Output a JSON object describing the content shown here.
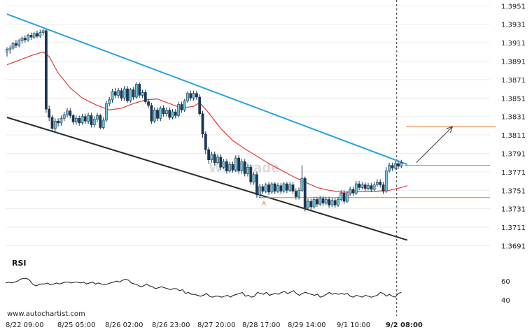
{
  "chart_data": {
    "type": "candlestick",
    "x_ticks": [
      "8/22 09:00",
      "8/25 05:00",
      "8/26 02:00",
      "8/26 23:00",
      "8/27 20:00",
      "8/28 17:00",
      "8/29 14:00",
      "9/1 10:00",
      "9/2 08:00"
    ],
    "y_ticks": [
      "1.3951",
      "1.3931",
      "1.3911",
      "1.3891",
      "1.3871",
      "1.3851",
      "1.3831",
      "1.3811",
      "1.3791",
      "1.3771",
      "1.3751",
      "1.3731",
      "1.3711",
      "1.3691"
    ],
    "ylim": [
      1.3683,
      1.3955
    ],
    "breakout_time": "9/2 08:00",
    "candles": [
      [
        1.3901,
        1.3904,
        1.3896,
        1.3906
      ],
      [
        1.3904,
        1.3905,
        1.3899,
        1.3908
      ],
      [
        1.3905,
        1.391,
        1.3903,
        1.3912
      ],
      [
        1.391,
        1.3908,
        1.3905,
        1.3914
      ],
      [
        1.3908,
        1.3913,
        1.3906,
        1.3915
      ],
      [
        1.3913,
        1.3916,
        1.391,
        1.3918
      ],
      [
        1.3916,
        1.3914,
        1.3911,
        1.3919
      ],
      [
        1.3914,
        1.3919,
        1.3912,
        1.3921
      ],
      [
        1.3919,
        1.3917,
        1.3914,
        1.3922
      ],
      [
        1.3917,
        1.3921,
        1.3915,
        1.3923
      ],
      [
        1.3921,
        1.3918,
        1.3916,
        1.3924
      ],
      [
        1.3918,
        1.3922,
        1.3916,
        1.3925
      ],
      [
        1.3922,
        1.3924,
        1.3919,
        1.3926
      ],
      [
        1.3924,
        1.3839,
        1.3835,
        1.3926
      ],
      [
        1.3839,
        1.383,
        1.3826,
        1.3843
      ],
      [
        1.383,
        1.3818,
        1.3815,
        1.3833
      ],
      [
        1.3818,
        1.3826,
        1.3815,
        1.3829
      ],
      [
        1.3826,
        1.3824,
        1.382,
        1.3829
      ],
      [
        1.3824,
        1.3829,
        1.3821,
        1.3832
      ],
      [
        1.3829,
        1.3833,
        1.3826,
        1.3836
      ],
      [
        1.3833,
        1.3837,
        1.383,
        1.384
      ],
      [
        1.3837,
        1.3832,
        1.3829,
        1.384
      ],
      [
        1.3832,
        1.3825,
        1.3822,
        1.3834
      ],
      [
        1.3825,
        1.3829,
        1.3822,
        1.3832
      ],
      [
        1.3829,
        1.3824,
        1.3821,
        1.3832
      ],
      [
        1.3824,
        1.3831,
        1.3822,
        1.3834
      ],
      [
        1.3831,
        1.3826,
        1.3823,
        1.3834
      ],
      [
        1.3826,
        1.3832,
        1.3823,
        1.3835
      ],
      [
        1.3832,
        1.3822,
        1.3819,
        1.3835
      ],
      [
        1.3822,
        1.3828,
        1.3819,
        1.3831
      ],
      [
        1.3828,
        1.3832,
        1.3825,
        1.3835
      ],
      [
        1.3832,
        1.3819,
        1.3817,
        1.3834
      ],
      [
        1.3819,
        1.3827,
        1.3817,
        1.383
      ],
      [
        1.3827,
        1.3845,
        1.3825,
        1.3848
      ],
      [
        1.3845,
        1.3849,
        1.3842,
        1.3852
      ],
      [
        1.3849,
        1.3858,
        1.3846,
        1.3861
      ],
      [
        1.3858,
        1.3854,
        1.3851,
        1.3862
      ],
      [
        1.3854,
        1.3859,
        1.3851,
        1.3862
      ],
      [
        1.3859,
        1.3851,
        1.3848,
        1.3862
      ],
      [
        1.3851,
        1.3861,
        1.3848,
        1.3864
      ],
      [
        1.3861,
        1.3848,
        1.3846,
        1.3864
      ],
      [
        1.3848,
        1.386,
        1.3846,
        1.3862
      ],
      [
        1.386,
        1.3852,
        1.3849,
        1.3863
      ],
      [
        1.3852,
        1.3866,
        1.385,
        1.3868
      ],
      [
        1.3866,
        1.3854,
        1.3851,
        1.3868
      ],
      [
        1.3854,
        1.3857,
        1.3851,
        1.386
      ],
      [
        1.3857,
        1.3847,
        1.3845,
        1.386
      ],
      [
        1.3847,
        1.3843,
        1.384,
        1.385
      ],
      [
        1.3843,
        1.3826,
        1.3823,
        1.3846
      ],
      [
        1.3826,
        1.3838,
        1.3824,
        1.3841
      ],
      [
        1.3838,
        1.3829,
        1.3826,
        1.3841
      ],
      [
        1.3829,
        1.384,
        1.3826,
        1.3842
      ],
      [
        1.384,
        1.3834,
        1.3831,
        1.3843
      ],
      [
        1.3834,
        1.3838,
        1.3831,
        1.3841
      ],
      [
        1.3838,
        1.383,
        1.3827,
        1.3841
      ],
      [
        1.383,
        1.3836,
        1.3828,
        1.3839
      ],
      [
        1.3836,
        1.3832,
        1.3829,
        1.3839
      ],
      [
        1.3832,
        1.3844,
        1.383,
        1.3847
      ],
      [
        1.3844,
        1.3838,
        1.3835,
        1.3847
      ],
      [
        1.3838,
        1.3848,
        1.3836,
        1.385
      ],
      [
        1.3848,
        1.3856,
        1.3846,
        1.3858
      ],
      [
        1.3856,
        1.3851,
        1.3848,
        1.3859
      ],
      [
        1.3851,
        1.3856,
        1.3848,
        1.3859
      ],
      [
        1.3856,
        1.3852,
        1.3849,
        1.3859
      ],
      [
        1.3852,
        1.3834,
        1.3832,
        1.3855
      ],
      [
        1.3834,
        1.3812,
        1.3808,
        1.3837
      ],
      [
        1.3812,
        1.3795,
        1.379,
        1.3815
      ],
      [
        1.3795,
        1.3784,
        1.378,
        1.3798
      ],
      [
        1.3784,
        1.379,
        1.3781,
        1.3793
      ],
      [
        1.379,
        1.3781,
        1.3778,
        1.3793
      ],
      [
        1.3781,
        1.3787,
        1.3779,
        1.379
      ],
      [
        1.3787,
        1.3776,
        1.3773,
        1.379
      ],
      [
        1.3776,
        1.3782,
        1.3774,
        1.3785
      ],
      [
        1.3782,
        1.3772,
        1.3769,
        1.3785
      ],
      [
        1.3772,
        1.3779,
        1.377,
        1.3782
      ],
      [
        1.3779,
        1.3773,
        1.377,
        1.3782
      ],
      [
        1.3773,
        1.3786,
        1.3771,
        1.3789
      ],
      [
        1.3786,
        1.3772,
        1.3769,
        1.3789
      ],
      [
        1.3772,
        1.3782,
        1.3769,
        1.3785
      ],
      [
        1.3782,
        1.3769,
        1.3766,
        1.3785
      ],
      [
        1.3769,
        1.3776,
        1.3766,
        1.3779
      ],
      [
        1.3776,
        1.376,
        1.3757,
        1.3779
      ],
      [
        1.376,
        1.3768,
        1.3757,
        1.3771
      ],
      [
        1.3768,
        1.3746,
        1.3743,
        1.3771
      ],
      [
        1.3746,
        1.3755,
        1.3743,
        1.3758
      ],
      [
        1.3755,
        1.375,
        1.3747,
        1.3758
      ],
      [
        1.375,
        1.3757,
        1.3748,
        1.3759
      ],
      [
        1.3757,
        1.3749,
        1.3746,
        1.376
      ],
      [
        1.3749,
        1.3758,
        1.3747,
        1.376
      ],
      [
        1.3758,
        1.375,
        1.3747,
        1.376
      ],
      [
        1.375,
        1.3756,
        1.3748,
        1.3759
      ],
      [
        1.3756,
        1.375,
        1.3747,
        1.3759
      ],
      [
        1.375,
        1.3758,
        1.3748,
        1.376
      ],
      [
        1.3758,
        1.3751,
        1.3748,
        1.376
      ],
      [
        1.3751,
        1.3757,
        1.3749,
        1.376
      ],
      [
        1.3757,
        1.375,
        1.3747,
        1.376
      ],
      [
        1.375,
        1.3744,
        1.3741,
        1.3753
      ],
      [
        1.3744,
        1.3751,
        1.3741,
        1.3754
      ],
      [
        1.3751,
        1.3764,
        1.3749,
        1.3778
      ],
      [
        1.3764,
        1.3732,
        1.3728,
        1.3766
      ],
      [
        1.3732,
        1.3739,
        1.373,
        1.3742
      ],
      [
        1.3739,
        1.3733,
        1.373,
        1.3742
      ],
      [
        1.3733,
        1.3741,
        1.3731,
        1.3744
      ],
      [
        1.3741,
        1.3736,
        1.3733,
        1.3744
      ],
      [
        1.3736,
        1.3742,
        1.3734,
        1.3745
      ],
      [
        1.3742,
        1.3737,
        1.3734,
        1.3745
      ],
      [
        1.3737,
        1.3741,
        1.3735,
        1.3744
      ],
      [
        1.3741,
        1.3735,
        1.3732,
        1.3744
      ],
      [
        1.3735,
        1.374,
        1.3733,
        1.3743
      ],
      [
        1.374,
        1.3735,
        1.3732,
        1.3743
      ],
      [
        1.3735,
        1.3741,
        1.3733,
        1.3744
      ],
      [
        1.3741,
        1.3748,
        1.3739,
        1.3751
      ],
      [
        1.3748,
        1.3739,
        1.3736,
        1.3751
      ],
      [
        1.3739,
        1.3747,
        1.3737,
        1.375
      ],
      [
        1.3747,
        1.3752,
        1.3745,
        1.3755
      ],
      [
        1.3752,
        1.3748,
        1.3745,
        1.3755
      ],
      [
        1.3748,
        1.3758,
        1.3746,
        1.3761
      ],
      [
        1.3758,
        1.3754,
        1.3751,
        1.3761
      ],
      [
        1.3754,
        1.3757,
        1.3752,
        1.376
      ],
      [
        1.3757,
        1.3753,
        1.375,
        1.376
      ],
      [
        1.3753,
        1.3756,
        1.3751,
        1.3759
      ],
      [
        1.3756,
        1.3752,
        1.3749,
        1.3759
      ],
      [
        1.3752,
        1.3757,
        1.375,
        1.376
      ],
      [
        1.3757,
        1.376,
        1.3755,
        1.3763
      ],
      [
        1.376,
        1.3757,
        1.3754,
        1.3763
      ],
      [
        1.3757,
        1.375,
        1.3747,
        1.376
      ],
      [
        1.375,
        1.3772,
        1.3748,
        1.3776
      ],
      [
        1.3772,
        1.3778,
        1.377,
        1.3781
      ],
      [
        1.3778,
        1.3775,
        1.3772,
        1.3781
      ],
      [
        1.3775,
        1.378,
        1.3773,
        1.3783
      ],
      [
        1.378,
        1.3777,
        1.3774,
        1.3783
      ],
      [
        1.3777,
        1.3781,
        1.3775,
        1.3784
      ]
    ],
    "moving_average": [
      [
        1.3887,
        0
      ],
      [
        1.3892,
        4
      ],
      [
        1.3897,
        8
      ],
      [
        1.3901,
        12
      ],
      [
        1.3896,
        14
      ],
      [
        1.3878,
        17
      ],
      [
        1.3862,
        21
      ],
      [
        1.3851,
        25
      ],
      [
        1.3843,
        30
      ],
      [
        1.3838,
        34
      ],
      [
        1.384,
        38
      ],
      [
        1.3845,
        42
      ],
      [
        1.3849,
        46
      ],
      [
        1.385,
        50
      ],
      [
        1.3845,
        54
      ],
      [
        1.384,
        58
      ],
      [
        1.3842,
        62
      ],
      [
        1.3846,
        64
      ],
      [
        1.3835,
        67
      ],
      [
        1.3818,
        71
      ],
      [
        1.3805,
        75
      ],
      [
        1.3796,
        79
      ],
      [
        1.3788,
        83
      ],
      [
        1.378,
        87
      ],
      [
        1.3773,
        91
      ],
      [
        1.3766,
        95
      ],
      [
        1.376,
        99
      ],
      [
        1.3754,
        103
      ],
      [
        1.3751,
        107
      ],
      [
        1.3749,
        111
      ],
      [
        1.3749,
        115
      ],
      [
        1.375,
        119
      ],
      [
        1.375,
        123
      ],
      [
        1.3751,
        127
      ],
      [
        1.3754,
        131
      ],
      [
        1.3756,
        133
      ]
    ],
    "channel_upper": [
      [
        1.3942,
        0
      ],
      [
        1.3779,
        133
      ]
    ],
    "channel_lower": [
      [
        1.383,
        0
      ],
      [
        1.3697,
        133
      ]
    ],
    "resistance_level": 1.3778,
    "support_level": 1.3743,
    "target_level": 1.382,
    "forecast_arrow": [
      [
        1.3781,
        136
      ],
      [
        1.382,
        148
      ]
    ],
    "point_label": "A",
    "rsi": {
      "title": "RSI",
      "ticks": [
        "60",
        "40"
      ],
      "ylim": [
        35,
        72
      ],
      "values": [
        58,
        59,
        58,
        59,
        60,
        62,
        63,
        63,
        61,
        57,
        55,
        56,
        57,
        57,
        58,
        56,
        57,
        58,
        57,
        58,
        59,
        59,
        58,
        59,
        59,
        58,
        59,
        57,
        58,
        59,
        57,
        58,
        57,
        56,
        57,
        58,
        59,
        60,
        59,
        61,
        62,
        61,
        58,
        57,
        56,
        54,
        55,
        57,
        55,
        54,
        52,
        53,
        54,
        53,
        52,
        51,
        52,
        52,
        50,
        51,
        47,
        48,
        46,
        46,
        45,
        44,
        45,
        47,
        44,
        43,
        44,
        44,
        43,
        44,
        45,
        43,
        45,
        46,
        47,
        48,
        44,
        45,
        43,
        44,
        48,
        47,
        46,
        48,
        45,
        46,
        47,
        46,
        48,
        49,
        47,
        48,
        50,
        47,
        45,
        47,
        48,
        47,
        46,
        45,
        46,
        43,
        44,
        46,
        48,
        46,
        47,
        46,
        47,
        46,
        47,
        44,
        43,
        45,
        44,
        43,
        45,
        44,
        43,
        44,
        45,
        48,
        47,
        44,
        46,
        44,
        43,
        47,
        48
      ]
    },
    "colors": {
      "upper_line": "#2aa3dc",
      "lower_line": "#2b2b2b",
      "moving_average": "#e03a3a",
      "levels": "#ee7a2a",
      "arrow": "#333333",
      "candle": "#1e3550",
      "candle_up": "#6fc7d9"
    }
  },
  "footer": {
    "source": "www.autochartist.com"
  },
  "watermark": {
    "text": "WhoTrade"
  }
}
